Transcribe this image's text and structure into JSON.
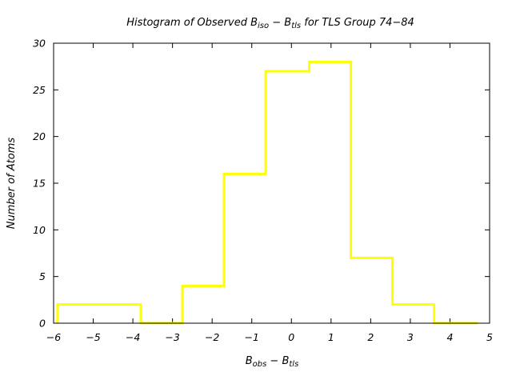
{
  "chart_data": {
    "type": "histogram",
    "title": {
      "prefix": "Histogram of Observed B",
      "sub1": "iso",
      "mid": " − B",
      "sub2": "tls",
      "suffix": " for TLS Group 74−84"
    },
    "xlabel": {
      "b1": "B",
      "s1": "obs",
      "mid": " − B",
      "s2": "tls"
    },
    "ylabel": "Number of Atoms",
    "xlim": [
      -6,
      5
    ],
    "ylim": [
      0,
      30
    ],
    "xticks": [
      -6,
      -5,
      -4,
      -3,
      -2,
      -1,
      0,
      1,
      2,
      3,
      4,
      5
    ],
    "xtick_labels": [
      "−6",
      "−5",
      "−4",
      "−3",
      "−2",
      "−1",
      "0",
      "1",
      "2",
      "3",
      "4",
      "5"
    ],
    "yticks": [
      0,
      5,
      10,
      15,
      20,
      25,
      30
    ],
    "ytick_labels": [
      "0",
      "5",
      "10",
      "15",
      "20",
      "25",
      "30"
    ],
    "bin_edges": [
      -5.9,
      -3.8,
      -2.75,
      -1.7,
      -0.65,
      0.45,
      1.5,
      2.55,
      3.6,
      4.7
    ],
    "counts": [
      2,
      0,
      4,
      16,
      27,
      28,
      7,
      2,
      0
    ],
    "line_color": "#ffff00",
    "grid": false
  }
}
